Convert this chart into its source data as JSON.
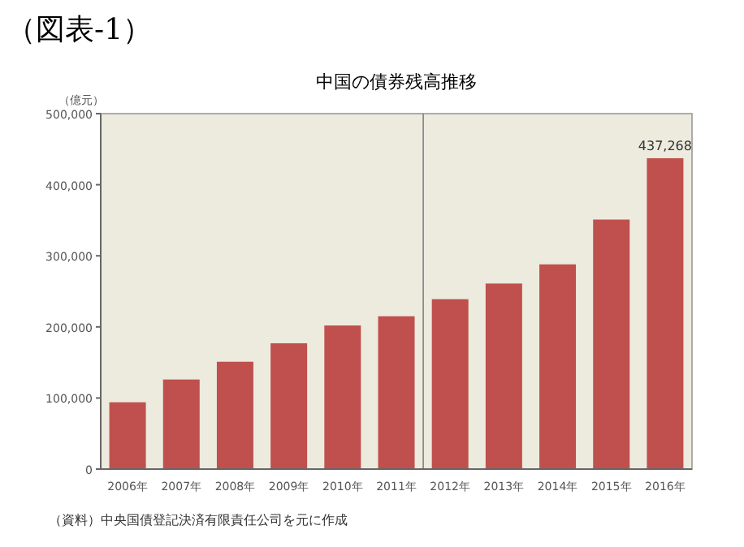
{
  "chart_data": {
    "type": "bar",
    "title": "中国の債券残高推移",
    "subtitle": "（図表-1）",
    "ylabel": "（億元）",
    "categories": [
      "2006年",
      "2007年",
      "2008年",
      "2009年",
      "2010年",
      "2011年",
      "2012年",
      "2013年",
      "2014年",
      "2015年",
      "2016年"
    ],
    "values": [
      94000,
      126000,
      151000,
      177000,
      202000,
      215000,
      239000,
      261000,
      288000,
      351000,
      437268
    ],
    "value_labels": [
      null,
      null,
      null,
      null,
      null,
      null,
      null,
      null,
      null,
      null,
      "437,268"
    ],
    "color": "#c0504d",
    "ylim": [
      0,
      500000
    ],
    "yticks": [
      0,
      {
        "value": 100000,
        "label": "100,000"
      },
      {
        "value": 200000,
        "label": "200,000"
      },
      {
        "value": 300000,
        "label": "300,000"
      },
      {
        "value": 400000,
        "label": "400,000"
      },
      {
        "value": 500000,
        "label": "500,000"
      }
    ],
    "grid": false,
    "annotations": [
      "（資料）中央国債登記決済有限責任公司を元に作成"
    ]
  }
}
